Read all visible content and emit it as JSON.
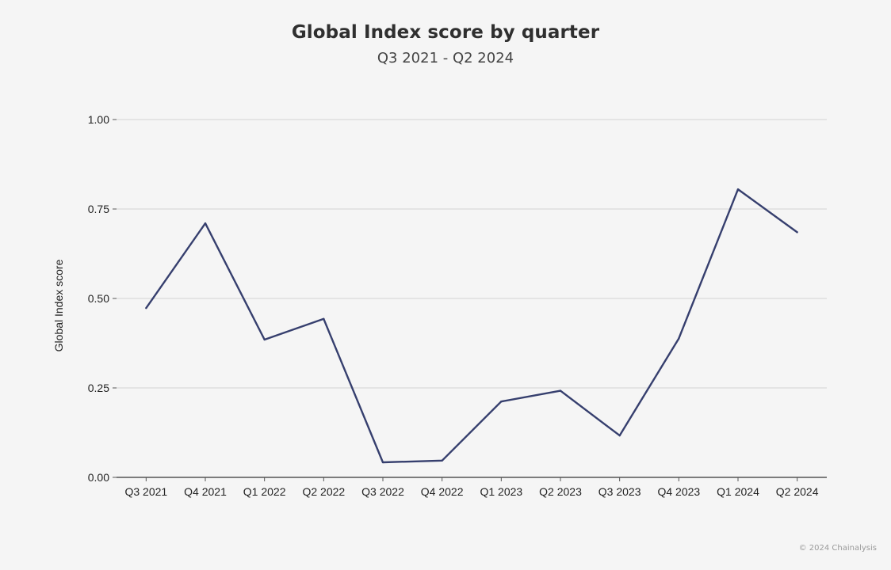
{
  "header": {
    "title": "Global Index score by quarter",
    "subtitle": "Q3 2021 - Q2 2024"
  },
  "footer": {
    "copyright": "© 2024 Chainalysis"
  },
  "colors": {
    "line": "#363f6e",
    "grid": "#d9d9d9",
    "axis": "#555555",
    "background": "#f5f5f5"
  },
  "chart_data": {
    "type": "line",
    "title": "Global Index score by quarter",
    "subtitle": "Q3 2021 - Q2 2024",
    "xlabel": "",
    "ylabel": "Global Index score",
    "ylim": [
      0,
      1
    ],
    "yticks": [
      "0.00",
      "0.25",
      "0.50",
      "0.75",
      "1.00"
    ],
    "ytick_values": [
      0,
      0.25,
      0.5,
      0.75,
      1.0
    ],
    "grid": true,
    "categories": [
      "Q3 2021",
      "Q4 2021",
      "Q1 2022",
      "Q2 2022",
      "Q3 2022",
      "Q4 2022",
      "Q1 2023",
      "Q2 2023",
      "Q3 2023",
      "Q4 2023",
      "Q1 2024",
      "Q2 2024"
    ],
    "series": [
      {
        "values": [
          0.473,
          0.71,
          0.385,
          0.443,
          0.042,
          0.047,
          0.212,
          0.242,
          0.117,
          0.388,
          0.805,
          0.685
        ]
      }
    ]
  }
}
